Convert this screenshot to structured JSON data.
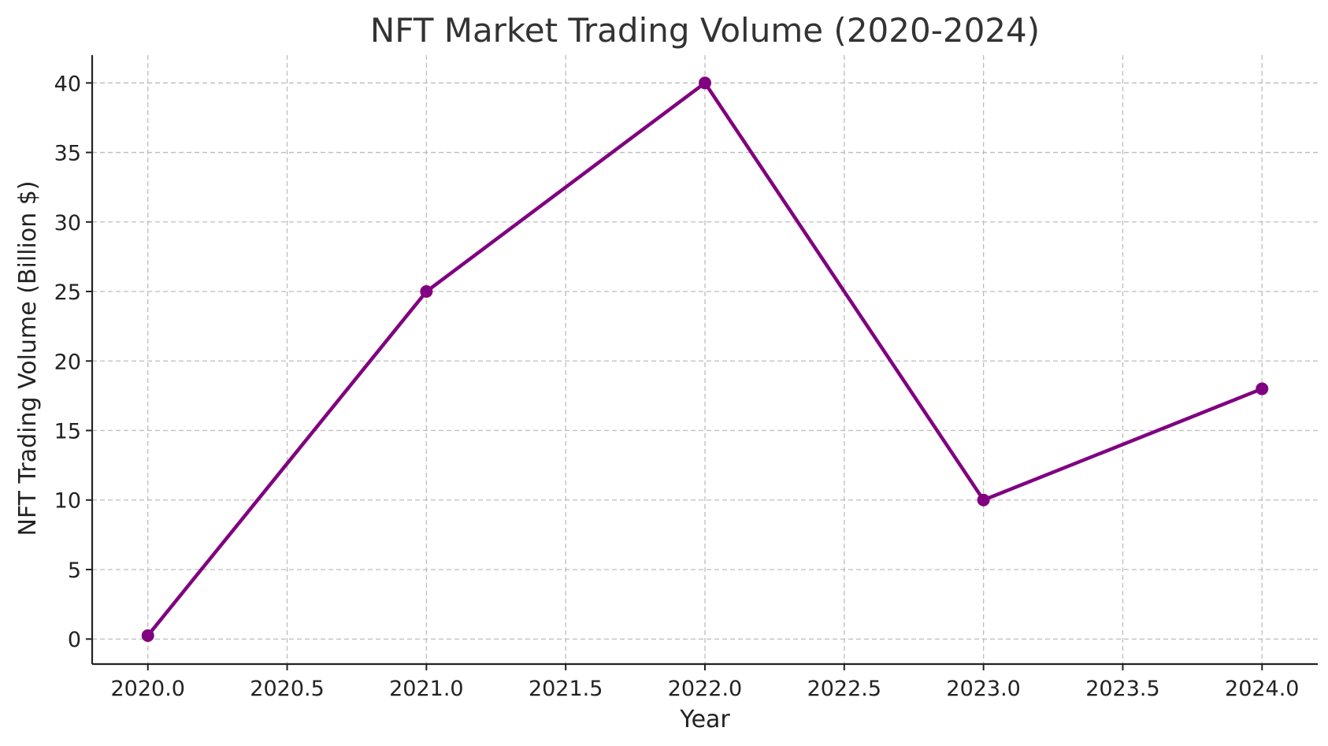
{
  "chart_data": {
    "type": "line",
    "title": "NFT Market Trading Volume (2020-2024)",
    "xlabel": "Year",
    "ylabel": "NFT Trading Volume (Billion $)",
    "xlim": [
      2019.8,
      2024.2
    ],
    "ylim": [
      -1.8,
      42
    ],
    "x_ticks": [
      2020.0,
      2020.5,
      2021.0,
      2021.5,
      2022.0,
      2022.5,
      2023.0,
      2023.5,
      2024.0
    ],
    "x_tick_labels": [
      "2020.0",
      "2020.5",
      "2021.0",
      "2021.5",
      "2022.0",
      "2022.5",
      "2023.0",
      "2023.5",
      "2024.0"
    ],
    "y_ticks": [
      0,
      5,
      10,
      15,
      20,
      25,
      30,
      35,
      40
    ],
    "y_tick_labels": [
      "0",
      "5",
      "10",
      "15",
      "20",
      "25",
      "30",
      "35",
      "40"
    ],
    "grid": true,
    "series": [
      {
        "color": "#800080",
        "marker": "circle",
        "x": [
          2020,
          2021,
          2022,
          2023,
          2024
        ],
        "values": [
          0.25,
          25,
          40,
          10,
          18
        ]
      }
    ]
  }
}
